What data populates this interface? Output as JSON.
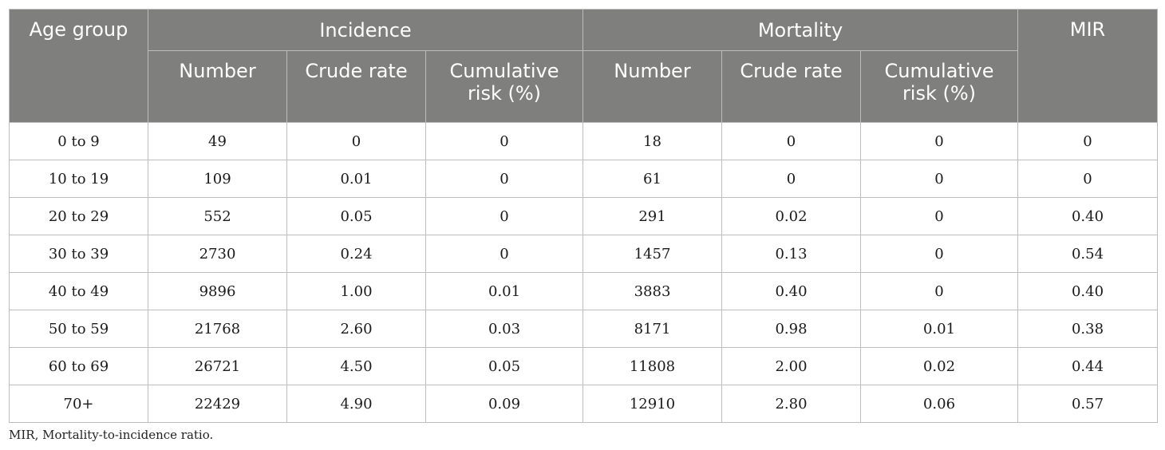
{
  "table": {
    "headers": {
      "age_group": "Age group",
      "incidence": "Incidence",
      "mortality": "Mortality",
      "mir": "MIR",
      "incidence_sub": [
        "Number",
        "Crude rate",
        "Cumulative risk (%)"
      ],
      "mortality_sub": [
        "Number",
        "Crude rate",
        "Cumulative risk (%)"
      ]
    },
    "rows": [
      [
        "0 to 9",
        "49",
        "0",
        "0",
        "18",
        "0",
        "0",
        "0"
      ],
      [
        "10 to 19",
        "109",
        "0.01",
        "0",
        "61",
        "0",
        "0",
        "0"
      ],
      [
        "20 to 29",
        "552",
        "0.05",
        "0",
        "291",
        "0.02",
        "0",
        "0.40"
      ],
      [
        "30 to 39",
        "2730",
        "0.24",
        "0",
        "1457",
        "0.13",
        "0",
        "0.54"
      ],
      [
        "40 to 49",
        "9896",
        "1.00",
        "0.01",
        "3883",
        "0.40",
        "0",
        "0.40"
      ],
      [
        "50 to 59",
        "21768",
        "2.60",
        "0.03",
        "8171",
        "0.98",
        "0.01",
        "0.38"
      ],
      [
        "60 to 69",
        "26721",
        "4.50",
        "0.05",
        "11808",
        "2.00",
        "0.02",
        "0.44"
      ],
      [
        "70+",
        "22429",
        "4.90",
        "0.09",
        "12910",
        "2.80",
        "0.06",
        "0.57"
      ]
    ]
  },
  "footnote": "MIR, Mortality-to-incidence ratio."
}
